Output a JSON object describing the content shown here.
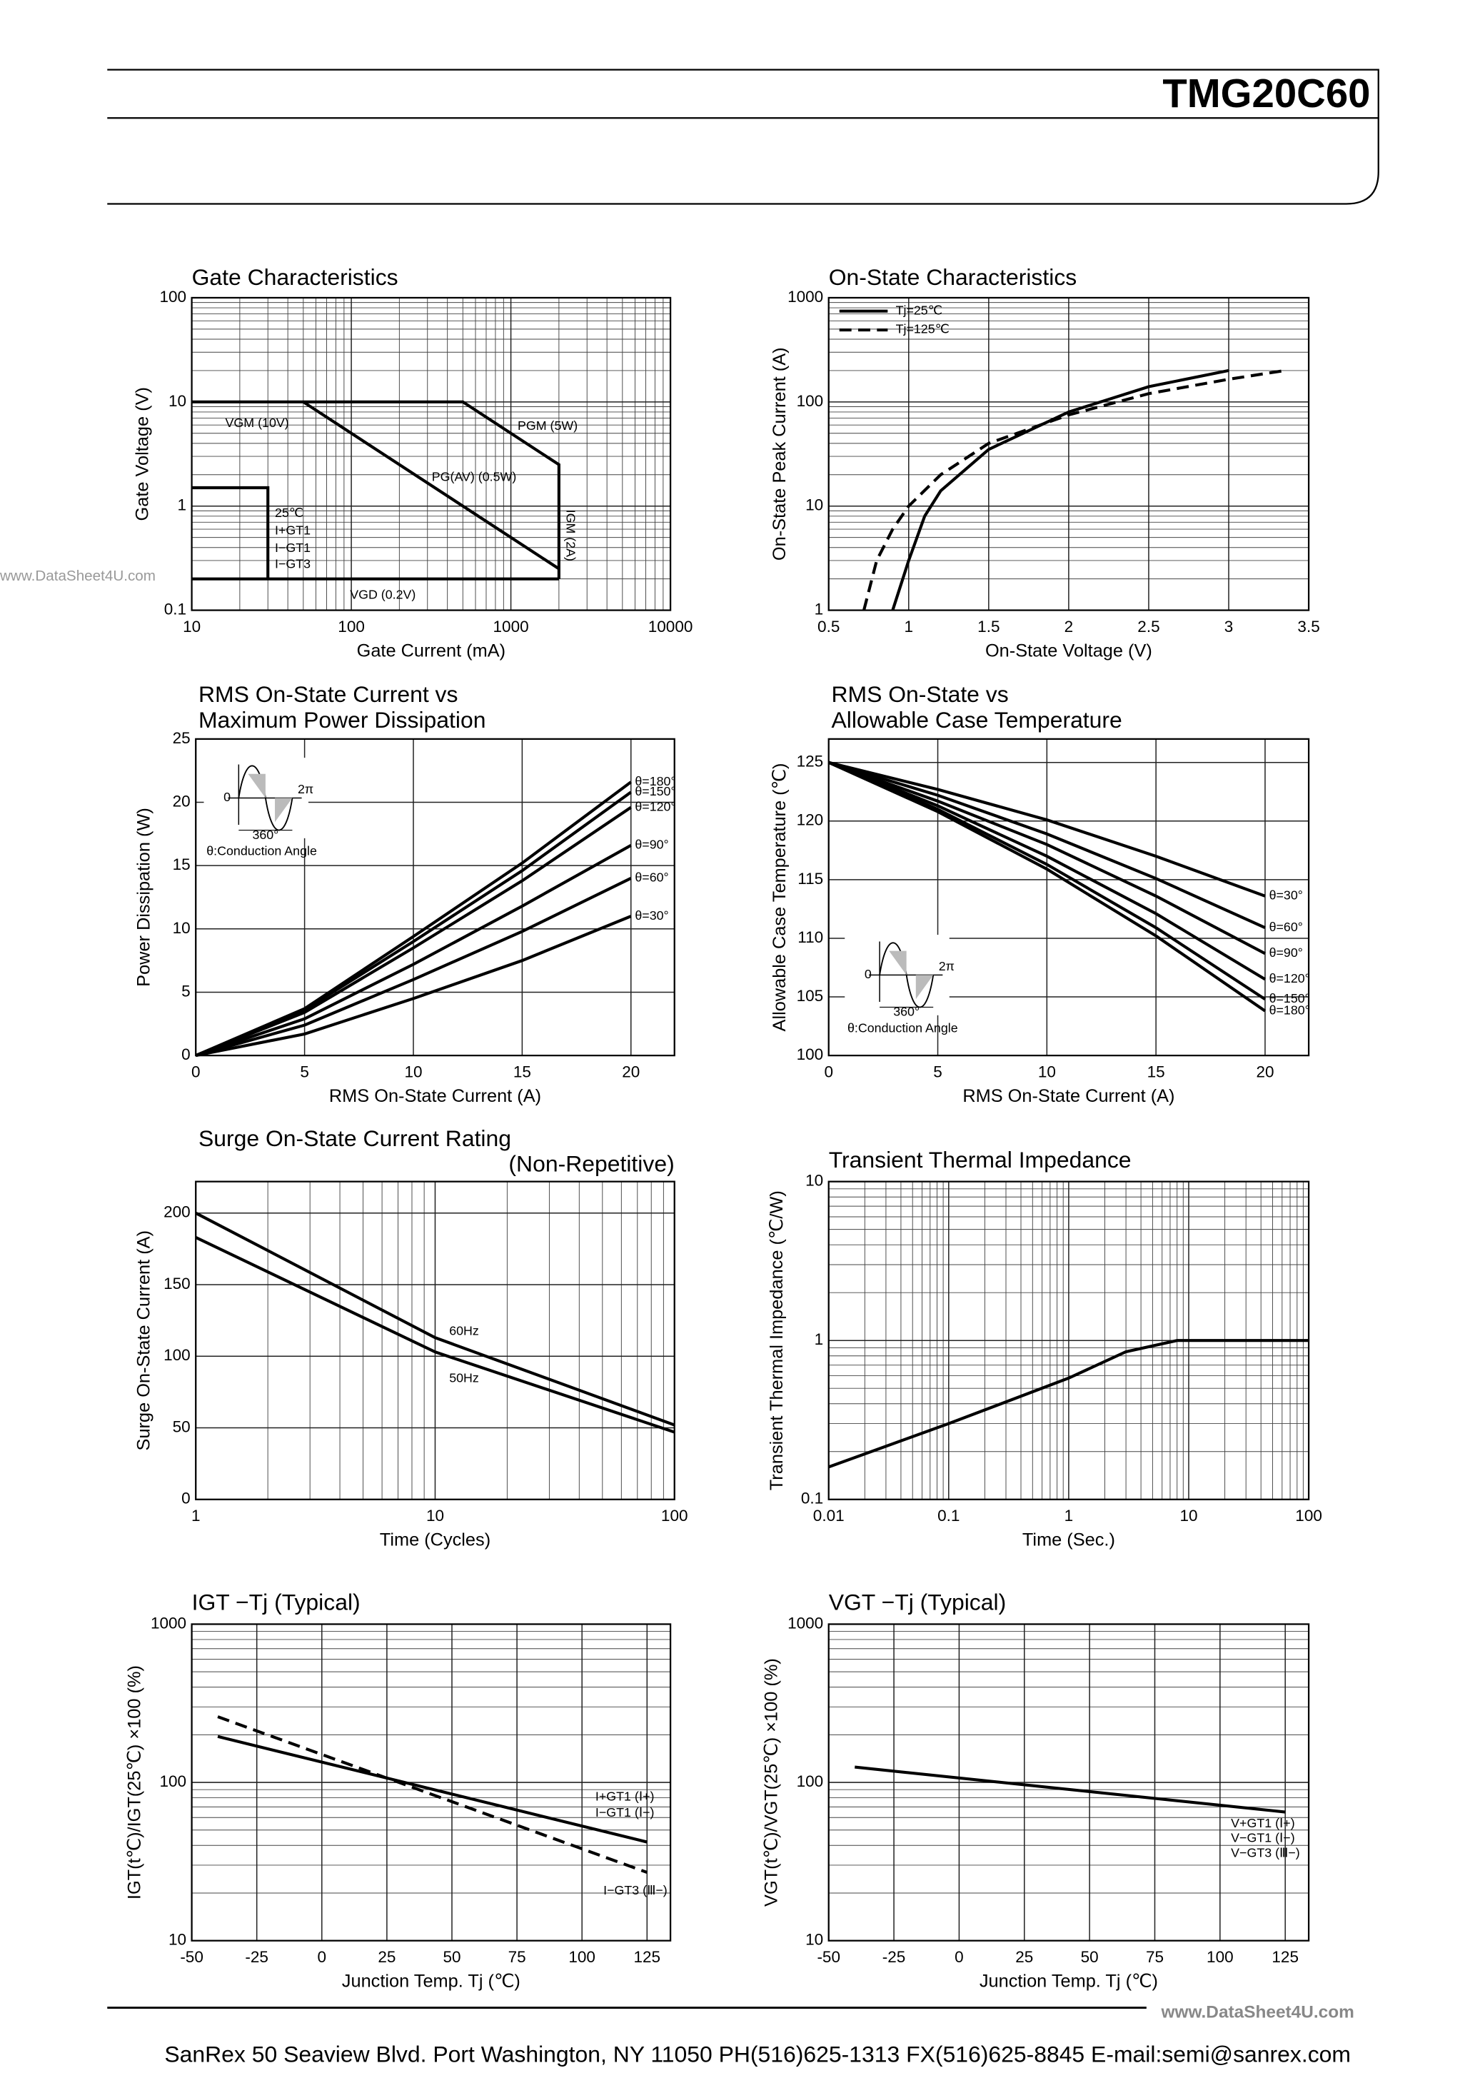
{
  "header": {
    "title": "TMG20C60"
  },
  "watermarks": [
    "www.DataSheet4U.com",
    "www.DataSheet4U.com"
  ],
  "footer": {
    "text": "SanRex 50 Seaview Blvd. Port Washington, NY 11050 PH(516)625-1313 FX(516)625-8845 E-mail:semi@sanrex.com"
  },
  "chart_data": [
    {
      "type": "line",
      "title": [
        "Gate Characteristics"
      ],
      "xlabel": "Gate Current (mA)",
      "ylabel": "Gate Voltage (V)",
      "xscale": "log",
      "yscale": "log",
      "grid": true,
      "xlim": [
        10,
        10000
      ],
      "ylim": [
        0.1,
        100
      ],
      "xticks": [
        10,
        100,
        1000,
        10000
      ],
      "yticks": [
        0.1,
        1,
        10,
        100
      ],
      "series": [
        {
          "color": "#000",
          "x": [
            10,
            500,
            2000,
            2000
          ],
          "values": [
            10,
            10,
            2.5,
            0.2
          ]
        },
        {
          "color": "#000",
          "x": [
            50,
            2000
          ],
          "values": [
            10,
            0.25
          ]
        },
        {
          "color": "#000",
          "x": [
            10,
            2000
          ],
          "values": [
            0.2,
            0.2
          ]
        },
        {
          "color": "#000",
          "x": [
            10,
            30,
            30
          ],
          "values": [
            1.5,
            1.5,
            0.2
          ]
        }
      ],
      "annotations": [
        "VGM (10V)",
        "PGM (5W)",
        "PG(AV) (0.5W)",
        "IGM (2A)",
        "VGD (0.2V)",
        "25℃",
        "I+GT1",
        "I−GT1",
        "I−GT3"
      ]
    },
    {
      "type": "line",
      "title": [
        "On-State Characteristics"
      ],
      "xlabel": "On-State Voltage (V)",
      "ylabel": "On-State Peak Current (A)",
      "yscale": "log",
      "grid": true,
      "xlim": [
        0.5,
        3.5
      ],
      "ylim": [
        1,
        1000
      ],
      "xticks": [
        0.5,
        1,
        1.5,
        2,
        2.5,
        3,
        3.5
      ],
      "yticks": [
        1,
        10,
        100,
        1000
      ],
      "legend": "upper left",
      "series": [
        {
          "name": "Tj=25℃",
          "color": "#000",
          "x": [
            0.9,
            1.0,
            1.1,
            1.2,
            1.5,
            2,
            2.5,
            3
          ],
          "values": [
            1,
            3,
            8,
            14,
            35,
            80,
            140,
            200
          ]
        },
        {
          "name": "Tj=125℃",
          "color": "#000",
          "dash": true,
          "x": [
            0.72,
            0.8,
            0.9,
            1,
            1.2,
            1.5,
            2,
            2.5,
            3,
            3.35
          ],
          "values": [
            1,
            3,
            6,
            10,
            20,
            40,
            75,
            120,
            165,
            200
          ]
        }
      ]
    },
    {
      "type": "line",
      "title": [
        "RMS On-State Current vs",
        "Maximum Power Dissipation"
      ],
      "xlabel": "RMS On-State Current (A)",
      "ylabel": "Power Dissipation (W)",
      "grid": true,
      "xlim": [
        0,
        22
      ],
      "ylim": [
        0,
        25
      ],
      "xticks": [
        0,
        5,
        10,
        15,
        20
      ],
      "yticks": [
        0,
        5,
        10,
        15,
        20,
        25
      ],
      "inset": [
        "0",
        "2π",
        "360°",
        "θ:Conduction Angle"
      ],
      "series": [
        {
          "name": "θ=180°",
          "color": "#000",
          "x": [
            0,
            5,
            10,
            15,
            20
          ],
          "values": [
            0,
            3.7,
            9.4,
            15.2,
            21.6
          ]
        },
        {
          "name": "θ=150°",
          "color": "#000",
          "x": [
            0,
            5,
            10,
            15,
            20
          ],
          "values": [
            0,
            3.6,
            9.0,
            14.6,
            20.8
          ]
        },
        {
          "name": "θ=120°",
          "color": "#000",
          "x": [
            0,
            5,
            10,
            15,
            20
          ],
          "values": [
            0,
            3.4,
            8.5,
            13.8,
            19.6
          ]
        },
        {
          "name": "θ=90°",
          "color": "#000",
          "x": [
            0,
            5,
            10,
            15,
            20
          ],
          "values": [
            0,
            2.9,
            7.2,
            11.8,
            16.6
          ]
        },
        {
          "name": "θ=60°",
          "color": "#000",
          "x": [
            0,
            5,
            10,
            15,
            20
          ],
          "values": [
            0,
            2.4,
            6.0,
            9.8,
            14.0
          ]
        },
        {
          "name": "θ=30°",
          "color": "#000",
          "x": [
            0,
            5,
            10,
            15,
            20
          ],
          "values": [
            0,
            1.7,
            4.5,
            7.5,
            11.0
          ]
        }
      ]
    },
    {
      "type": "line",
      "title": [
        "RMS On-State vs",
        "Allowable Case Temperature"
      ],
      "xlabel": "RMS On-State Current (A)",
      "ylabel": "Allowable Case Temperature (℃)",
      "grid": true,
      "xlim": [
        0,
        22
      ],
      "ylim": [
        100,
        127
      ],
      "xticks": [
        0,
        5,
        10,
        15,
        20
      ],
      "yticks": [
        100,
        105,
        110,
        115,
        120,
        125
      ],
      "inset": [
        "0",
        "2π",
        "360°",
        "θ:Conduction Angle"
      ],
      "series": [
        {
          "name": "θ=30°",
          "color": "#000",
          "x": [
            0,
            5,
            10,
            15,
            20
          ],
          "values": [
            125,
            122.7,
            120.1,
            117.0,
            113.6
          ]
        },
        {
          "name": "θ=60°",
          "color": "#000",
          "x": [
            0,
            5,
            10,
            15,
            20
          ],
          "values": [
            125,
            122.2,
            118.9,
            115.1,
            110.9
          ]
        },
        {
          "name": "θ=90°",
          "color": "#000",
          "x": [
            0,
            5,
            10,
            15,
            20
          ],
          "values": [
            125,
            121.7,
            118.0,
            113.6,
            108.7
          ]
        },
        {
          "name": "θ=120°",
          "color": "#000",
          "x": [
            0,
            5,
            10,
            15,
            20
          ],
          "values": [
            125,
            121.3,
            117.0,
            112.1,
            106.5
          ]
        },
        {
          "name": "θ=150°",
          "color": "#000",
          "x": [
            0,
            5,
            10,
            15,
            20
          ],
          "values": [
            125,
            121.0,
            116.3,
            110.9,
            104.8
          ]
        },
        {
          "name": "θ=180°",
          "color": "#000",
          "x": [
            0,
            5,
            10,
            15,
            20
          ],
          "values": [
            125,
            120.8,
            115.9,
            110.2,
            103.8
          ]
        }
      ]
    },
    {
      "type": "line",
      "title": [
        "Surge On-State Current Rating",
        "(Non-Repetitive)"
      ],
      "xlabel": "Time (Cycles)",
      "ylabel": "Surge On-State Current (A)",
      "xscale": "log",
      "grid": true,
      "xlim": [
        1,
        100
      ],
      "ylim": [
        0,
        222
      ],
      "xticks": [
        1,
        10,
        100
      ],
      "yticks": [
        0,
        50,
        100,
        150,
        200
      ],
      "series": [
        {
          "color": "#000",
          "x": [
            1,
            10,
            100
          ],
          "values": [
            200,
            113,
            52
          ]
        },
        {
          "color": "#000",
          "x": [
            1,
            10,
            100
          ],
          "values": [
            183,
            103,
            47
          ]
        }
      ],
      "annotations": [
        "60Hz",
        "50Hz"
      ]
    },
    {
      "type": "line",
      "title": [
        "Transient Thermal Impedance"
      ],
      "xlabel": "Time (Sec.)",
      "ylabel": "Transient Thermal Impedance (℃/W)",
      "xscale": "log",
      "yscale": "log",
      "grid": true,
      "xlim": [
        0.01,
        100
      ],
      "ylim": [
        0.1,
        10
      ],
      "xticks": [
        0.01,
        0.1,
        1,
        10,
        100
      ],
      "yticks": [
        0.1,
        1,
        10
      ],
      "series": [
        {
          "color": "#000",
          "x": [
            0.01,
            0.1,
            1,
            3,
            8,
            100
          ],
          "values": [
            0.16,
            0.3,
            0.58,
            0.85,
            1,
            1
          ]
        }
      ]
    },
    {
      "type": "line",
      "title": [
        "IGT −Tj (Typical)"
      ],
      "xlabel": "Junction Temp. Tj (℃)",
      "ylabel": "IGT(t℃)/IGT(25℃) ×100 (%)",
      "yscale": "log",
      "grid": true,
      "xlim": [
        -50,
        134
      ],
      "ylim": [
        10,
        1000
      ],
      "xticks": [
        -50,
        -25,
        0,
        25,
        50,
        75,
        100,
        125
      ],
      "yticks": [
        10,
        100,
        1000
      ],
      "series": [
        {
          "color": "#000",
          "x": [
            -40,
            125
          ],
          "values": [
            195,
            42
          ]
        },
        {
          "color": "#000",
          "dash": true,
          "x": [
            -40,
            125
          ],
          "values": [
            260,
            27
          ]
        }
      ],
      "annotations": [
        "I+GT1 (Ⅰ+)",
        "I−GT1 (Ⅰ−)",
        "I−GT3 (Ⅲ−)"
      ]
    },
    {
      "type": "line",
      "title": [
        "VGT −Tj (Typical)"
      ],
      "xlabel": "Junction Temp. Tj (℃)",
      "ylabel": "VGT(t℃)/VGT(25℃) ×100 (%)",
      "yscale": "log",
      "grid": true,
      "xlim": [
        -50,
        134
      ],
      "ylim": [
        10,
        1000
      ],
      "xticks": [
        -50,
        -25,
        0,
        25,
        50,
        75,
        100,
        125
      ],
      "yticks": [
        10,
        100,
        1000
      ],
      "series": [
        {
          "color": "#000",
          "x": [
            -40,
            125
          ],
          "values": [
            125,
            65
          ]
        }
      ],
      "annotations": [
        "V+GT1 (Ⅰ+)",
        "V−GT1 (Ⅰ−)",
        "V−GT3 (Ⅲ−)"
      ]
    }
  ]
}
